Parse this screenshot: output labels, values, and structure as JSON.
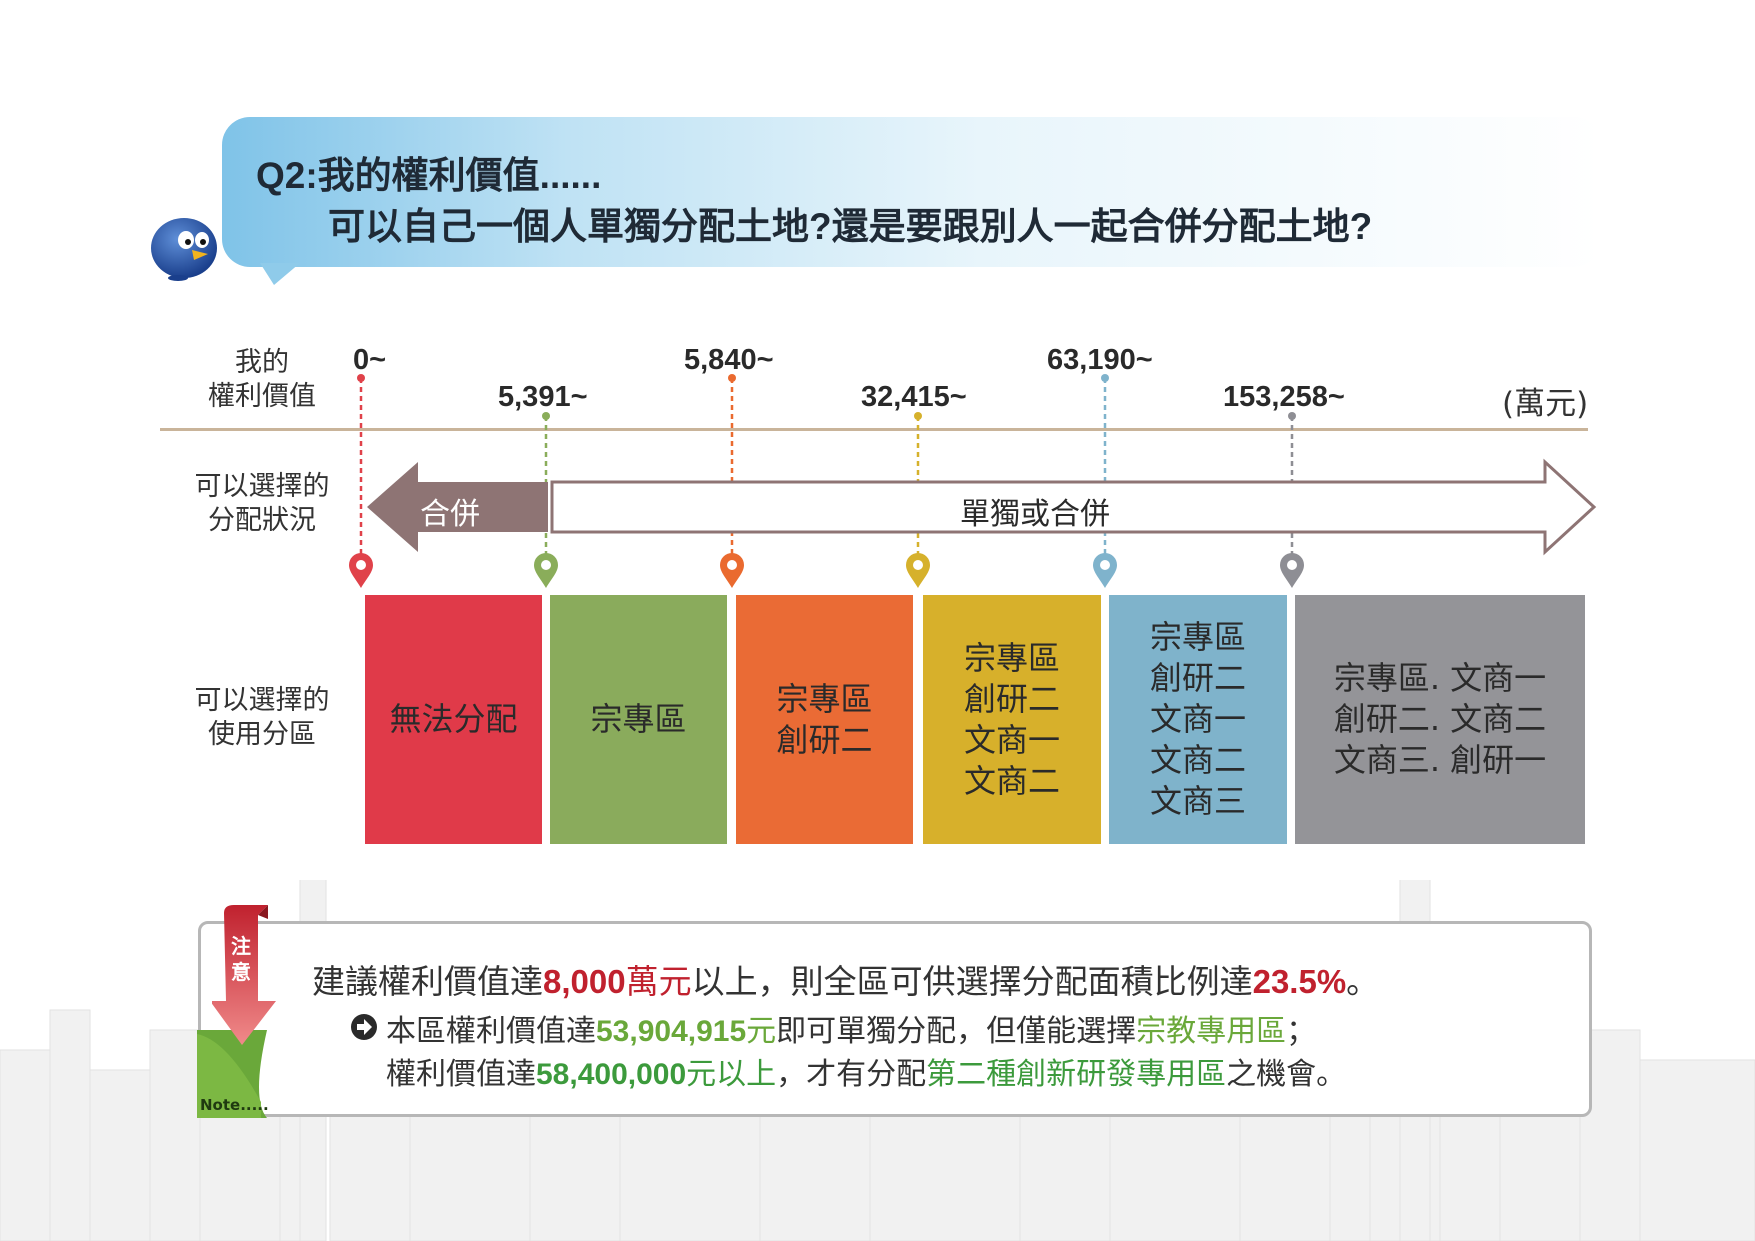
{
  "header": {
    "line1": "Q2:我的權利價值......",
    "line2": "可以自己一個人單獨分配土地?還是要跟別人一起合併分配土地?"
  },
  "labels": {
    "value_row_1": "我的",
    "value_row_2": "權利價值",
    "unit": "(萬元)",
    "choice_row_1": "可以選擇的",
    "choice_row_2": "分配狀況",
    "zone_row_1": "可以選擇的",
    "zone_row_2": "使用分區"
  },
  "thresholds": [
    {
      "label": "0~",
      "color": "#e0424a"
    },
    {
      "label": "5,391~",
      "color": "#8aad5a"
    },
    {
      "label": "5,840~",
      "color": "#ea6a2f"
    },
    {
      "label": "32,415~",
      "color": "#d6b12c"
    },
    {
      "label": "63,190~",
      "color": "#7fb3cc"
    },
    {
      "label": "153,258~",
      "color": "#8e8e94"
    }
  ],
  "arrows": {
    "merge": "合併",
    "single_or_merge": "單獨或合併"
  },
  "zones": [
    {
      "lines": [
        "無法分配"
      ],
      "color": "#e03a49"
    },
    {
      "lines": [
        "宗專區"
      ],
      "color": "#8aab5c"
    },
    {
      "lines": [
        "宗專區",
        "創研二"
      ],
      "color": "#ea6b35"
    },
    {
      "lines": [
        "宗專區",
        "創研二",
        "文商一",
        "文商二"
      ],
      "color": "#d7b02b"
    },
    {
      "lines": [
        "宗專區",
        "創研二",
        "文商一",
        "文商二",
        "文商三"
      ],
      "color": "#7fb3cb"
    },
    {
      "lines": [
        "宗專區. 文商一",
        "創研二. 文商二",
        "文商三. 創研一"
      ],
      "color": "#949498"
    }
  ],
  "note": {
    "tag_top": "注",
    "tag_bottom": "意",
    "tag_label": "Note.....",
    "line1": {
      "a": "建議權利價值達",
      "b": "8,000",
      "c": "萬元",
      "d": "以上，則全區可供選擇分配面積比例達",
      "e": "23.5%",
      "f": "。"
    },
    "line2": {
      "a": "本區權利價值達",
      "b": "53,904,915",
      "c": "元",
      "d": "即可單獨分配，但僅能選擇",
      "e": "宗教專用區",
      "f": "；"
    },
    "line3": {
      "a": "權利價值達",
      "b": "58,400,000",
      "c": "元以上",
      "d": "，才有分配",
      "e": "第二種創新研發專用區",
      "f": "之機會。"
    }
  }
}
